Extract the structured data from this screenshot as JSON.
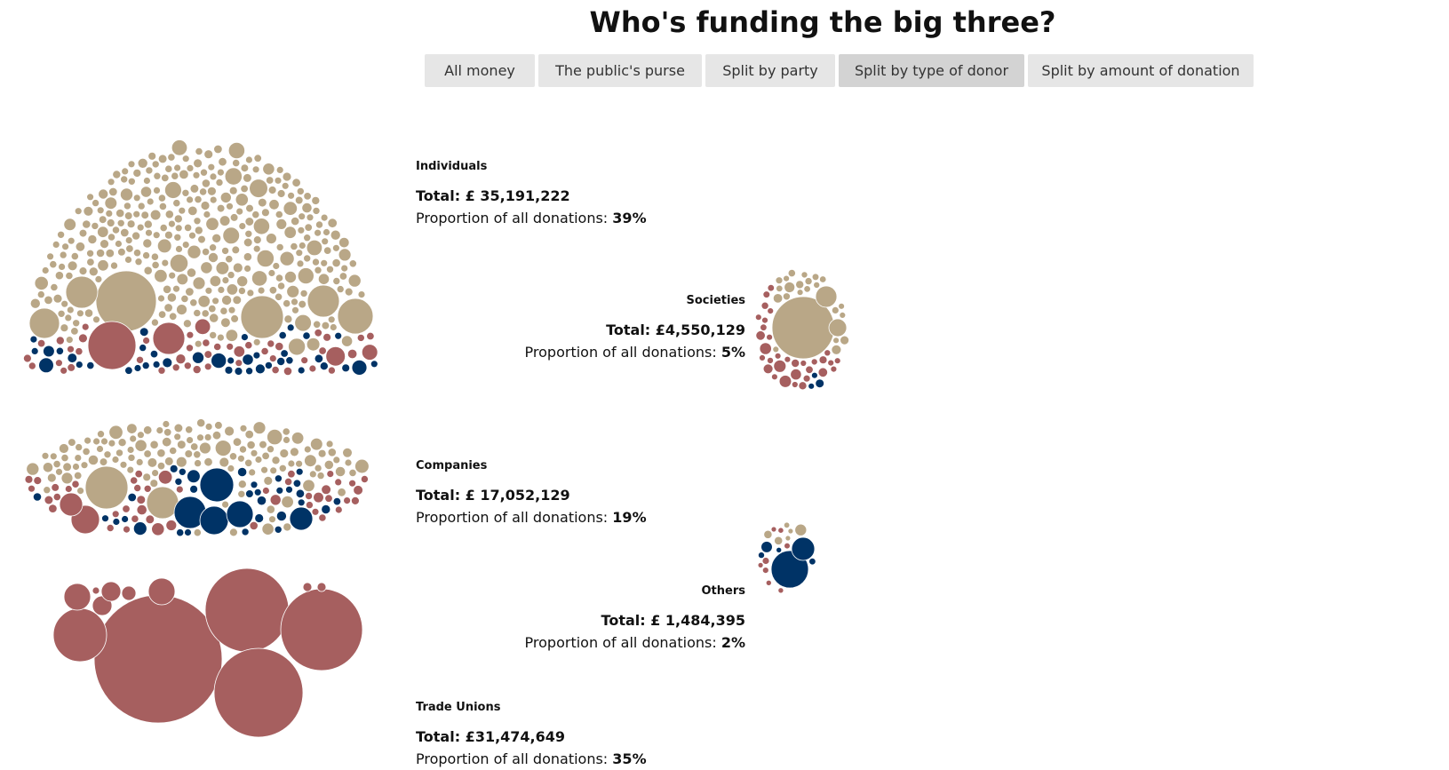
{
  "title": "Who's funding the big three?",
  "tabs": [
    {
      "label": "All money",
      "active": false
    },
    {
      "label": "The public's purse",
      "active": false
    },
    {
      "label": "Split by party",
      "active": false
    },
    {
      "label": "Split by type of donor",
      "active": true
    },
    {
      "label": "Split by amount of donation",
      "active": false
    }
  ],
  "colors": {
    "conservative": "#003366",
    "labour": "#a65f5f",
    "libdem": "#b9a787",
    "tab_bg": "#e6e6e6",
    "tab_active_bg": "#d3d3d3"
  },
  "proportion_label": "Proportion of all donations:",
  "chart_data": {
    "type": "bubble-cluster",
    "groups": [
      {
        "category": "Individuals",
        "total": "Total: £ 35,191,222",
        "proportion": "39%"
      },
      {
        "category": "Societies",
        "total": "Total: £4,550,129",
        "proportion": "5%"
      },
      {
        "category": "Companies",
        "total": "Total: £ 17,052,129",
        "proportion": "19%"
      },
      {
        "category": "Others",
        "total": "Total: £ 1,484,395",
        "proportion": "2%"
      },
      {
        "category": "Trade Unions",
        "total": "Total: £31,474,649",
        "proportion": "35%"
      }
    ]
  }
}
